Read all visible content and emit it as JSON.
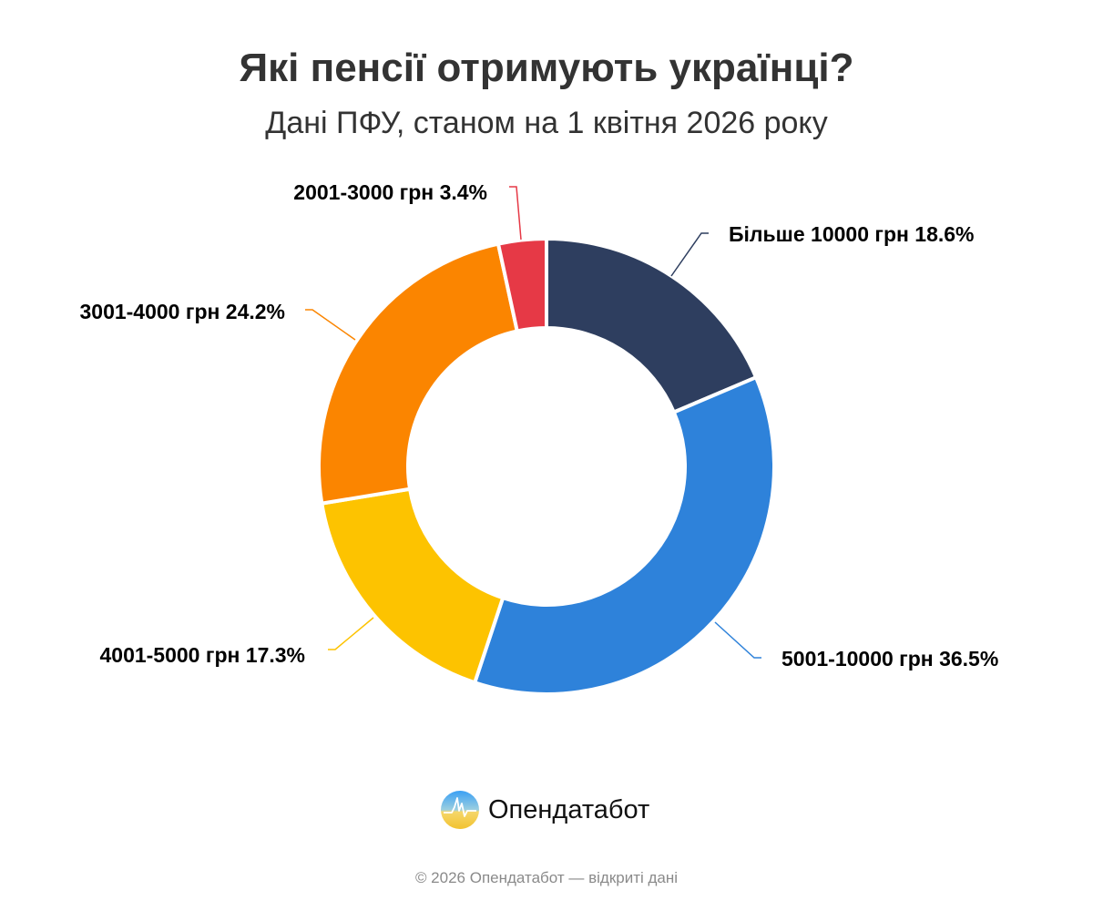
{
  "chart_data": {
    "type": "pie",
    "variant": "donut",
    "title": "Які пенсії отримують українці?",
    "subtitle": "Дані ПФУ, станом на 1 квітня 2026 року",
    "unit": "%",
    "slices": [
      {
        "label": "Більше 10000 грн",
        "value": 18.6,
        "display": "Більше 10000 грн 18.6%",
        "color": "#2e3e5f"
      },
      {
        "label": "5001-10000 грн",
        "value": 36.5,
        "display": "5001-10000 грн 36.5%",
        "color": "#2e82da"
      },
      {
        "label": "4001-5000 грн",
        "value": 17.3,
        "display": "4001-5000 грн 17.3%",
        "color": "#fdc300"
      },
      {
        "label": "3001-4000 грн",
        "value": 24.2,
        "display": "3001-4000 грн 24.2%",
        "color": "#fb8500"
      },
      {
        "label": "2001-3000 грн",
        "value": 3.4,
        "display": "2001-3000 грн 3.4%",
        "color": "#e63946"
      }
    ],
    "legend": "none"
  },
  "brand": {
    "name": "Опендатабот"
  },
  "footer": "© 2026 Опендатабот — відкриті дані"
}
